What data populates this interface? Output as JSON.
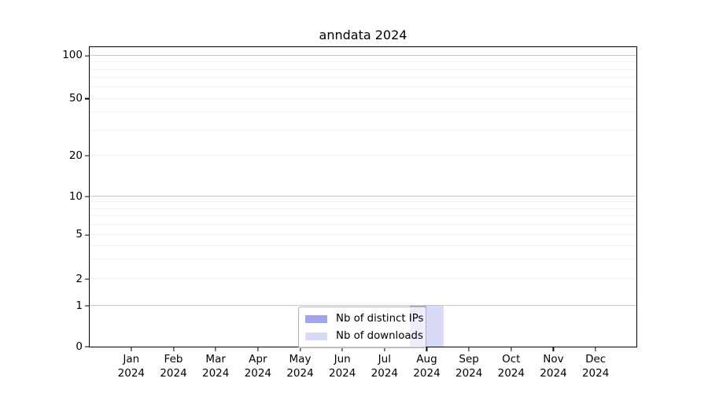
{
  "colors": {
    "series_ips": "#a3a3ee",
    "series_downloads": "#d9d9f8",
    "major_grid": "#c8c8c8",
    "minor_grid": "#eeeeee",
    "axis": "#000000",
    "legend_border": "#b3b3b3",
    "background": "#ffffff"
  },
  "chart_data": {
    "type": "bar",
    "title": "anndata 2024",
    "categories": [
      {
        "month": "Jan",
        "year": "2024"
      },
      {
        "month": "Feb",
        "year": "2024"
      },
      {
        "month": "Mar",
        "year": "2024"
      },
      {
        "month": "Apr",
        "year": "2024"
      },
      {
        "month": "May",
        "year": "2024"
      },
      {
        "month": "Jun",
        "year": "2024"
      },
      {
        "month": "Jul",
        "year": "2024"
      },
      {
        "month": "Aug",
        "year": "2024"
      },
      {
        "month": "Sep",
        "year": "2024"
      },
      {
        "month": "Oct",
        "year": "2024"
      },
      {
        "month": "Nov",
        "year": "2024"
      },
      {
        "month": "Dec",
        "year": "2024"
      }
    ],
    "series": [
      {
        "name": "Nb of distinct IPs",
        "color": "#a3a3ee",
        "values": [
          0,
          0,
          0,
          0,
          0,
          0,
          0,
          1,
          0,
          0,
          0,
          0
        ]
      },
      {
        "name": "Nb of downloads",
        "color": "#d9d9f8",
        "values": [
          0,
          0,
          0,
          0,
          0,
          0,
          0,
          1,
          0,
          0,
          0,
          0
        ]
      }
    ],
    "xlabel": "",
    "ylabel": "",
    "ylim": [
      0,
      100
    ],
    "yscale": "symlog",
    "grid": true,
    "y_tick_labels": [
      100,
      50,
      20,
      10,
      5,
      2,
      1,
      0
    ],
    "y_major_gridlines": [
      1,
      10,
      100
    ],
    "y_minor_gridlines": [
      2,
      3,
      4,
      5,
      6,
      7,
      8,
      9,
      20,
      30,
      40,
      50,
      60,
      70,
      80,
      90
    ],
    "y_scale_anchors": [
      [
        0,
        0
      ],
      [
        1,
        0.1358
      ],
      [
        2,
        0.2245
      ],
      [
        5,
        0.3734
      ],
      [
        10,
        0.5013
      ],
      [
        20,
        0.6371
      ],
      [
        50,
        0.8277
      ],
      [
        100,
        0.9713
      ]
    ],
    "legend_position": "lower center"
  }
}
